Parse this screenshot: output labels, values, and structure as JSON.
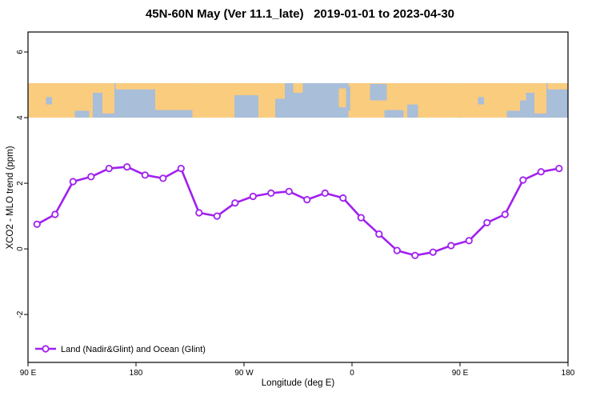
{
  "title": "45N-60N May (Ver 11.1_late)   2019-01-01 to 2023-04-30",
  "chart_data": {
    "type": "line",
    "title": "45N-60N May (Ver 11.1_late)   2019-01-01 to 2023-04-30",
    "xlabel": "Longitude (deg E)",
    "ylabel": "XCO2 - MLO trend (ppm)",
    "xlim": [
      90,
      540
    ],
    "ylim": [
      -3.46,
      6.61
    ],
    "grid": false,
    "x_axis_wrap_note": "longitude axis runs eastward: 90E, 180, 90W, 0, 90E, 180",
    "x_ticks": [
      {
        "pos": 90,
        "label": "90 E"
      },
      {
        "pos": 180,
        "label": "180"
      },
      {
        "pos": 270,
        "label": "90 W"
      },
      {
        "pos": 360,
        "label": "0"
      },
      {
        "pos": 450,
        "label": "90 E"
      },
      {
        "pos": 540,
        "label": "180"
      }
    ],
    "y_ticks": [
      -2,
      0,
      2,
      4,
      6
    ],
    "series": [
      {
        "name": "Land (Nadir&Glint) and Ocean (Glint)",
        "color": "#A020F0",
        "marker": "open-circle",
        "x": [
          97.5,
          112.5,
          127.5,
          142.5,
          157.5,
          172.5,
          187.5,
          202.5,
          217.5,
          232.5,
          247.5,
          262.5,
          277.5,
          292.5,
          307.5,
          322.5,
          337.5,
          352.5,
          367.5,
          382.5,
          397.5,
          412.5,
          427.5,
          442.5,
          457.5,
          472.5,
          487.5,
          502.5,
          517.5,
          532.5
        ],
        "values": [
          0.75,
          1.05,
          2.05,
          2.2,
          2.45,
          2.5,
          2.25,
          2.15,
          2.45,
          1.1,
          1.0,
          1.4,
          1.6,
          1.7,
          1.75,
          1.5,
          1.7,
          1.55,
          0.95,
          0.45,
          -0.05,
          -0.2,
          -0.1,
          0.1,
          0.25,
          0.8,
          1.05,
          2.1,
          2.35,
          2.45
        ]
      }
    ],
    "legend": {
      "position": "bottom-left",
      "entries": [
        "Land (Nadir&Glint) and Ocean (Glint)"
      ]
    },
    "map_band": {
      "description": "world-map strip (45N-60N latitude band) spanning values 4.0 to 5.05 on the y axis",
      "y_range": [
        4.0,
        5.05
      ],
      "ocean_color": "#A8BED9",
      "land_color": "#FACC7E",
      "land_segments": [
        {
          "name": "siberia-west",
          "from": 90,
          "to": 144,
          "top": 0,
          "bottom": 1
        },
        {
          "name": "okhotsk-coast",
          "from": 144,
          "to": 152,
          "top": 0,
          "bottom": 0.28
        },
        {
          "name": "kamchatka",
          "from": 152,
          "to": 162,
          "top": 0,
          "bottom": 0.88
        },
        {
          "name": "chukotka-strip",
          "from": 163,
          "to": 196,
          "top": 0,
          "bottom": 0.18
        },
        {
          "name": "alaska",
          "from": 196,
          "to": 227,
          "top": 0,
          "bottom": 0.78
        },
        {
          "name": "canada",
          "from": 227,
          "to": 304,
          "top": 0,
          "bottom": 1
        },
        {
          "name": "greenland-tip",
          "from": 311,
          "to": 319,
          "top": 0,
          "bottom": 0.28
        },
        {
          "name": "british-isles",
          "from": 349,
          "to": 360,
          "top": 0.15,
          "bottom": 0.7
        },
        {
          "name": "europe-russia",
          "from": 357,
          "to": 450,
          "top": 0,
          "bottom": 1
        },
        {
          "name": "siberia-east",
          "from": 450,
          "to": 505,
          "top": 0,
          "bottom": 1
        },
        {
          "name": "okhotsk-coast-2",
          "from": 505,
          "to": 512,
          "top": 0,
          "bottom": 0.28
        },
        {
          "name": "kamchatka-2",
          "from": 512,
          "to": 522,
          "top": 0,
          "bottom": 0.88
        },
        {
          "name": "chukotka-strip-2",
          "from": 523,
          "to": 540,
          "top": 0,
          "bottom": 0.18
        }
      ],
      "water_patches": [
        {
          "name": "lake-baikal",
          "from": 105,
          "to": 110,
          "top": 0.4,
          "bottom": 0.62
        },
        {
          "name": "sea-of-japan",
          "from": 129,
          "to": 141,
          "top": 0.8,
          "bottom": 1
        },
        {
          "name": "hudson-bay",
          "from": 262,
          "to": 282,
          "top": 0.35,
          "bottom": 1
        },
        {
          "name": "gulf-st-lawrence",
          "from": 296,
          "to": 304,
          "top": 0.45,
          "bottom": 1
        },
        {
          "name": "north-sea-channel",
          "from": 355,
          "to": 358.5,
          "top": 0.08,
          "bottom": 0.8
        },
        {
          "name": "baltic-sea",
          "from": 375,
          "to": 389,
          "top": 0.02,
          "bottom": 0.5
        },
        {
          "name": "black-sea",
          "from": 387,
          "to": 403,
          "top": 0.78,
          "bottom": 1
        },
        {
          "name": "caspian-sea",
          "from": 406,
          "to": 415,
          "top": 0.62,
          "bottom": 1
        },
        {
          "name": "lake-baikal-2",
          "from": 465,
          "to": 470,
          "top": 0.4,
          "bottom": 0.62
        },
        {
          "name": "sea-of-japan-2",
          "from": 489,
          "to": 500,
          "top": 0.8,
          "bottom": 1
        },
        {
          "name": "okhotsk-west-2",
          "from": 500,
          "to": 505,
          "top": 0.5,
          "bottom": 1
        }
      ]
    }
  }
}
